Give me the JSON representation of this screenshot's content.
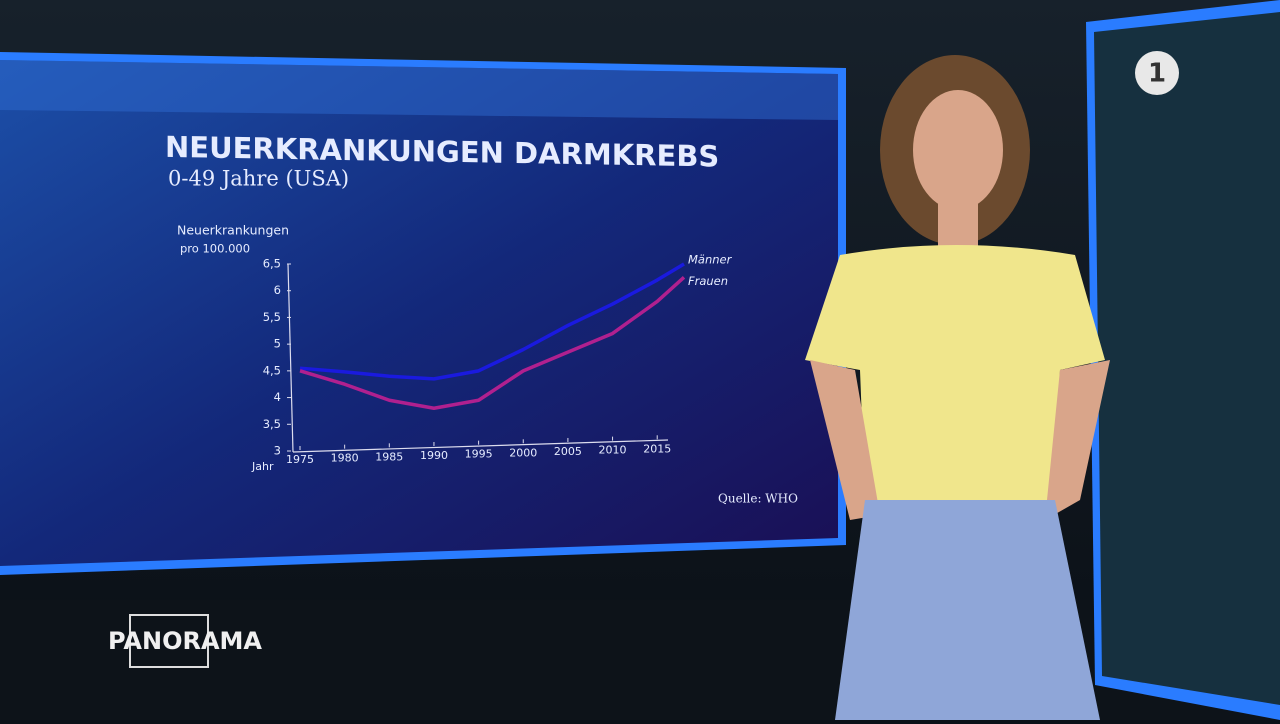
{
  "chart_data": {
    "type": "line",
    "title": "NEUERKRANKUNGEN DARMKREBS",
    "subtitle": "0-49 Jahre (USA)",
    "ylabel": [
      "Neuerkrankungen",
      "pro 100.000"
    ],
    "xlabel": "Jahr",
    "source": "Quelle: WHO",
    "x": [
      1975,
      1980,
      1985,
      1990,
      1995,
      2000,
      2005,
      2010,
      2015,
      2018
    ],
    "series": [
      {
        "name": "Männer",
        "color": "#1a1adf",
        "values": [
          4.55,
          4.48,
          4.4,
          4.35,
          4.5,
          4.9,
          5.35,
          5.75,
          6.2,
          6.5
        ]
      },
      {
        "name": "Frauen",
        "color": "#b0208f",
        "values": [
          4.5,
          4.25,
          3.95,
          3.8,
          3.95,
          4.5,
          4.85,
          5.2,
          5.8,
          6.25
        ]
      }
    ],
    "xlim": [
      1975,
      2018
    ],
    "xticks": [
      1975,
      1980,
      1985,
      1990,
      1995,
      2000,
      2005,
      2010,
      2015
    ],
    "ylim": [
      3,
      6.5
    ],
    "yticks": [
      3,
      {
        "value": 3.5,
        "label": "3,5"
      },
      4,
      {
        "value": 4.5,
        "label": "4,5"
      },
      5,
      {
        "value": 5.5,
        "label": "5,5"
      },
      6,
      {
        "value": 6.5,
        "label": "6,5"
      }
    ],
    "grid": false
  },
  "overlay": {
    "show_logo": "PANORAMA",
    "channel_logo": "1"
  }
}
